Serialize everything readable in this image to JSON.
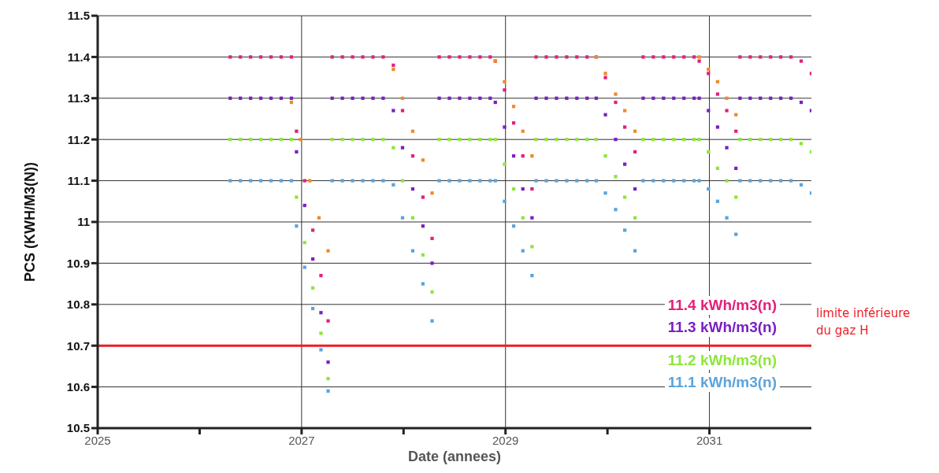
{
  "chart_data": {
    "type": "scatter",
    "xlabel": "Date (annees)",
    "ylabel": "PCS (KWH/M3(N))",
    "xlim": [
      2025,
      2032
    ],
    "xticks": [
      2025,
      {
        "value": 2026,
        "label": null
      },
      2027,
      {
        "value": 2028,
        "label": null
      },
      2029,
      {
        "value": 2030,
        "label": null
      },
      2031
    ],
    "ylim": [
      10.5,
      11.5
    ],
    "yticks": [
      10.5,
      10.6,
      10.7,
      10.8,
      10.9,
      11,
      11.1,
      11.2,
      11.3,
      11.4,
      11.5
    ],
    "grid": true,
    "legend": "bottom right",
    "marker": "square",
    "x": [
      2026.3,
      2026.4,
      2026.5,
      2026.6,
      2026.7,
      2026.8,
      2026.9,
      2026.95,
      2027.03,
      2027.11,
      2027.19,
      2027.26,
      2027.3,
      2027.4,
      2027.5,
      2027.6,
      2027.7,
      2027.8,
      2027.9,
      2027.99,
      2028.09,
      2028.19,
      2028.28,
      2028.35,
      2028.45,
      2028.55,
      2028.65,
      2028.75,
      2028.85,
      2028.9,
      2028.99,
      2029.08,
      2029.17,
      2029.26,
      2029.3,
      2029.4,
      2029.5,
      2029.6,
      2029.7,
      2029.8,
      2029.89,
      2029.98,
      2030.08,
      2030.17,
      2030.27,
      2030.35,
      2030.45,
      2030.55,
      2030.65,
      2030.75,
      2030.85,
      2030.9,
      2030.99,
      2031.08,
      2031.17,
      2031.26,
      2031.3,
      2031.4,
      2031.5,
      2031.6,
      2031.7,
      2031.8,
      2031.9,
      2032
    ],
    "series": [
      {
        "name": "11.4 kWh/m3(n)",
        "color": "#e2217a",
        "values": [
          11.4,
          11.4,
          11.4,
          11.4,
          11.4,
          11.4,
          11.4,
          11.22,
          11.1,
          10.98,
          10.87,
          10.76,
          11.4,
          11.4,
          11.4,
          11.4,
          11.4,
          11.4,
          11.38,
          11.27,
          11.16,
          11.06,
          10.96,
          11.4,
          11.4,
          11.4,
          11.4,
          11.4,
          11.4,
          11.39,
          11.32,
          11.24,
          11.16,
          11.08,
          11.4,
          11.4,
          11.4,
          11.4,
          11.4,
          11.4,
          11.4,
          11.35,
          11.29,
          11.23,
          11.17,
          11.4,
          11.4,
          11.4,
          11.4,
          11.4,
          11.4,
          11.39,
          11.36,
          11.31,
          11.27,
          11.22,
          11.4,
          11.4,
          11.4,
          11.4,
          11.4,
          11.4,
          11.39,
          11.36
        ]
      },
      {
        "name": "11.3 kWh/m3(n)",
        "color": "#7a1fc4",
        "values": [
          11.3,
          11.3,
          11.3,
          11.3,
          11.3,
          11.3,
          11.3,
          11.17,
          11.04,
          10.91,
          10.78,
          10.66,
          11.3,
          11.3,
          11.3,
          11.3,
          11.3,
          11.3,
          11.27,
          11.18,
          11.08,
          10.99,
          10.9,
          11.3,
          11.3,
          11.3,
          11.3,
          11.3,
          11.3,
          11.29,
          11.23,
          11.16,
          11.08,
          11.01,
          11.3,
          11.3,
          11.3,
          11.3,
          11.3,
          11.3,
          11.3,
          11.26,
          11.2,
          11.14,
          11.08,
          11.3,
          11.3,
          11.3,
          11.3,
          11.3,
          11.3,
          11.3,
          11.27,
          11.23,
          11.18,
          11.13,
          11.3,
          11.3,
          11.3,
          11.3,
          11.3,
          11.3,
          11.29,
          11.27
        ]
      },
      {
        "name": "11.2 kWh/m3(n)",
        "color": "#8ee63a",
        "values": [
          11.2,
          11.2,
          11.2,
          11.2,
          11.2,
          11.2,
          11.2,
          11.06,
          10.95,
          10.84,
          10.73,
          10.62,
          11.2,
          11.2,
          11.2,
          11.2,
          11.2,
          11.2,
          11.18,
          11.1,
          11.01,
          10.92,
          10.83,
          11.2,
          11.2,
          11.2,
          11.2,
          11.2,
          11.2,
          11.2,
          11.14,
          11.08,
          11.01,
          10.94,
          11.2,
          11.2,
          11.2,
          11.2,
          11.2,
          11.2,
          11.2,
          11.16,
          11.11,
          11.06,
          11.01,
          11.2,
          11.2,
          11.2,
          11.2,
          11.2,
          11.2,
          11.2,
          11.17,
          11.13,
          11.1,
          11.06,
          11.2,
          11.2,
          11.2,
          11.2,
          11.2,
          11.2,
          11.19,
          11.17
        ]
      },
      {
        "name": "11.1 kWh/m3(n)",
        "color": "#5ba4dc",
        "values": [
          11.1,
          11.1,
          11.1,
          11.1,
          11.1,
          11.1,
          11.1,
          10.99,
          10.89,
          10.79,
          10.69,
          10.59,
          11.1,
          11.1,
          11.1,
          11.1,
          11.1,
          11.1,
          11.09,
          11.01,
          10.93,
          10.85,
          10.76,
          11.1,
          11.1,
          11.1,
          11.1,
          11.1,
          11.1,
          11.1,
          11.05,
          10.99,
          10.93,
          10.87,
          11.1,
          11.1,
          11.1,
          11.1,
          11.1,
          11.1,
          11.1,
          11.07,
          11.03,
          10.98,
          10.93,
          11.1,
          11.1,
          11.1,
          11.1,
          11.1,
          11.1,
          11.1,
          11.08,
          11.05,
          11.01,
          10.97,
          11.1,
          11.1,
          11.1,
          11.1,
          11.1,
          11.1,
          11.09,
          11.07
        ]
      },
      {
        "color": "#ee8a2c",
        "x": [
          2026.9,
          2026.99,
          2027.08,
          2027.17,
          2027.26,
          2027.9,
          2027.99,
          2028.09,
          2028.19,
          2028.28,
          2028.9,
          2028.99,
          2029.08,
          2029.17,
          2029.26,
          2029.89,
          2029.98,
          2030.08,
          2030.17,
          2030.27,
          2030.9,
          2030.99,
          2031.08,
          2031.17,
          2031.26
        ],
        "values": [
          11.29,
          11.2,
          11.1,
          11.01,
          10.93,
          11.37,
          11.3,
          11.22,
          11.15,
          11.07,
          11.39,
          11.34,
          11.28,
          11.22,
          11.16,
          11.4,
          11.36,
          11.31,
          11.27,
          11.22,
          11.4,
          11.37,
          11.34,
          11.3,
          11.26
        ]
      }
    ],
    "ref_lines": [
      {
        "axis": "y",
        "value": 10.7,
        "label": "limite inférieure du gaz H",
        "color": "#ee1c25"
      }
    ]
  }
}
